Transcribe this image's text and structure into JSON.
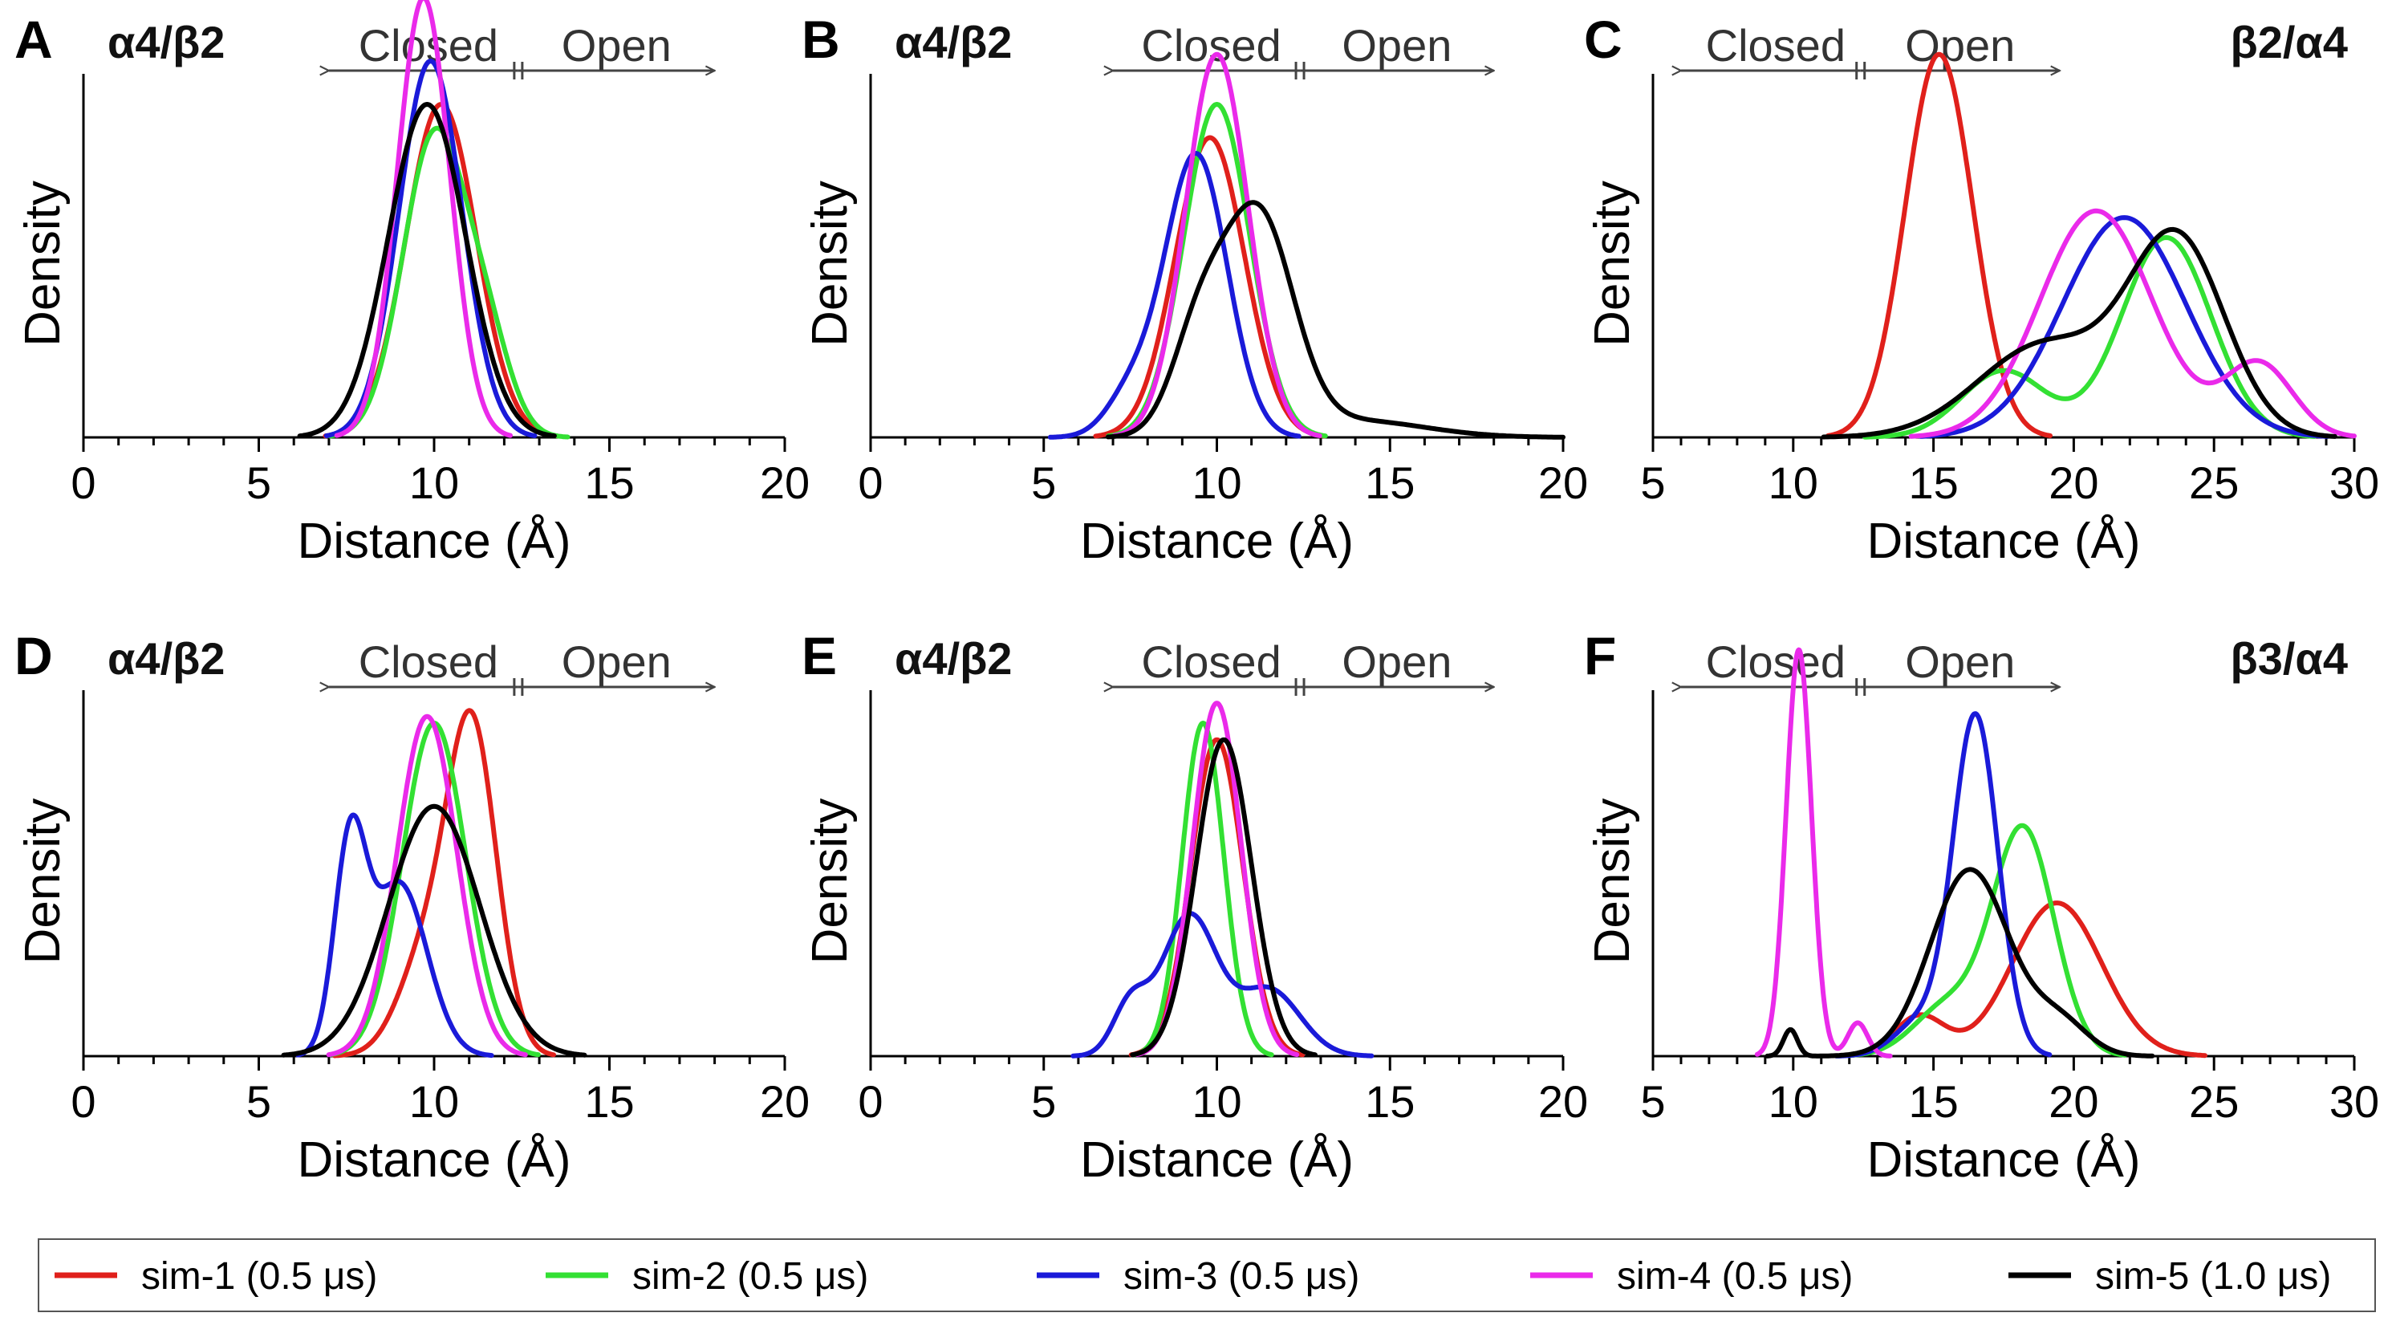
{
  "colors": {
    "sim-1": "#e0201b",
    "sim-2": "#33e033",
    "sim-3": "#1a1ad9",
    "sim-4": "#ea2aea",
    "sim-5": "#000000",
    "axis": "#000000",
    "arrow": "#444444"
  },
  "legend": [
    {
      "key": "sim-1",
      "label": "sim-1 (0.5 μs)"
    },
    {
      "key": "sim-2",
      "label": "sim-2 (0.5 μs)"
    },
    {
      "key": "sim-3",
      "label": "sim-3 (0.5 μs)"
    },
    {
      "key": "sim-4",
      "label": "sim-4 (0.5 μs)"
    },
    {
      "key": "sim-5",
      "label": "sim-5 (1.0 μs)"
    }
  ],
  "chart_data": [
    {
      "panel": "A",
      "type": "line",
      "receptor": "α4/β2",
      "xlabel": "Distance (Å)",
      "ylabel": "Density",
      "xlim": [
        0,
        20
      ],
      "xticks": [
        "0",
        "5",
        "10",
        "15",
        "20"
      ],
      "ylim": [
        0,
        1.0
      ],
      "closed_label": "Closed",
      "open_label": "Open",
      "arrow_range": [
        7,
        18
      ],
      "closed_open_boundary": 12.4,
      "series": [
        {
          "name": "sim-1 (0.5 μs)",
          "key": "sim-1",
          "components": [
            [
              10.2,
              1.0,
              1.0
            ]
          ]
        },
        {
          "name": "sim-2 (0.5 μs)",
          "key": "sim-2",
          "components": [
            [
              10.0,
              0.9,
              0.9
            ],
            [
              11.5,
              0.7,
              0.25
            ]
          ]
        },
        {
          "name": "sim-3 (0.5 μs)",
          "key": "sim-3",
          "components": [
            [
              9.9,
              0.9,
              1.13
            ]
          ]
        },
        {
          "name": "sim-4 (0.5 μs)",
          "key": "sim-4",
          "components": [
            [
              9.7,
              0.75,
              1.32
            ]
          ]
        },
        {
          "name": "sim-5 (1.0 μs)",
          "key": "sim-5",
          "components": [
            [
              9.8,
              1.1,
              1.0
            ]
          ]
        }
      ]
    },
    {
      "panel": "B",
      "type": "line",
      "receptor": "α4/β2",
      "xlabel": "Distance (Å)",
      "ylabel": "Density",
      "xlim": [
        0,
        20
      ],
      "xticks": [
        "0",
        "5",
        "10",
        "15",
        "20"
      ],
      "ylim": [
        0,
        1.0
      ],
      "closed_label": "Closed",
      "open_label": "Open",
      "arrow_range": [
        7,
        18
      ],
      "closed_open_boundary": 12.4,
      "series": [
        {
          "name": "sim-1 (0.5 μs)",
          "key": "sim-1",
          "components": [
            [
              9.8,
              1.0,
              0.9
            ]
          ]
        },
        {
          "name": "sim-2 (0.5 μs)",
          "key": "sim-2",
          "components": [
            [
              10.0,
              0.95,
              1.0
            ]
          ]
        },
        {
          "name": "sim-3 (0.5 μs)",
          "key": "sim-3",
          "components": [
            [
              9.4,
              0.9,
              0.85
            ],
            [
              7.5,
              0.7,
              0.12
            ]
          ]
        },
        {
          "name": "sim-4 (0.5 μs)",
          "key": "sim-4",
          "components": [
            [
              10.0,
              0.9,
              1.15
            ]
          ]
        },
        {
          "name": "sim-5 (1.0 μs)",
          "key": "sim-5",
          "components": [
            [
              11.2,
              1.0,
              0.65
            ],
            [
              9.5,
              0.8,
              0.3
            ],
            [
              14.0,
              2.0,
              0.05
            ]
          ]
        }
      ]
    },
    {
      "panel": "C",
      "type": "line",
      "receptor": "β2/α4",
      "xlabel": "Distance (Å)",
      "ylabel": "Density",
      "xlim": [
        5,
        30
      ],
      "xticks": [
        "5",
        "10",
        "15",
        "20",
        "25",
        "30"
      ],
      "ylim": [
        0,
        1.0
      ],
      "closed_label": "Closed",
      "open_label": "Open",
      "arrow_range": [
        6,
        19.5
      ],
      "closed_open_boundary": 12.4,
      "series": [
        {
          "name": "sim-1 (0.5 μs)",
          "key": "sim-1",
          "components": [
            [
              15.2,
              1.2,
              1.15
            ]
          ]
        },
        {
          "name": "sim-2 (0.5 μs)",
          "key": "sim-2",
          "components": [
            [
              23.3,
              1.6,
              0.6
            ],
            [
              17.5,
              1.5,
              0.2
            ]
          ]
        },
        {
          "name": "sim-3 (0.5 μs)",
          "key": "sim-3",
          "components": [
            [
              21.8,
              2.2,
              0.66
            ]
          ]
        },
        {
          "name": "sim-4 (0.5 μs)",
          "key": "sim-4",
          "components": [
            [
              20.8,
              2.0,
              0.68
            ],
            [
              26.6,
              1.2,
              0.22
            ]
          ]
        },
        {
          "name": "sim-5 (1.0 μs)",
          "key": "sim-5",
          "components": [
            [
              23.7,
              1.7,
              0.58
            ],
            [
              19.0,
              2.4,
              0.28
            ]
          ]
        }
      ]
    },
    {
      "panel": "D",
      "type": "line",
      "receptor": "α4/β2",
      "xlabel": "Distance (Å)",
      "ylabel": "Density",
      "xlim": [
        0,
        20
      ],
      "xticks": [
        "0",
        "5",
        "10",
        "15",
        "20"
      ],
      "ylim": [
        0,
        1.0
      ],
      "closed_label": "Closed",
      "open_label": "Open",
      "arrow_range": [
        7,
        18
      ],
      "closed_open_boundary": 12.4,
      "series": [
        {
          "name": "sim-1 (0.5 μs)",
          "key": "sim-1",
          "components": [
            [
              11.1,
              0.7,
              0.95
            ],
            [
              9.8,
              0.8,
              0.3
            ]
          ]
        },
        {
          "name": "sim-2 (0.5 μs)",
          "key": "sim-2",
          "components": [
            [
              10.0,
              0.9,
              1.0
            ]
          ]
        },
        {
          "name": "sim-3 (0.5 μs)",
          "key": "sim-3",
          "components": [
            [
              7.6,
              0.45,
              0.6
            ],
            [
              9.0,
              0.8,
              0.52
            ]
          ]
        },
        {
          "name": "sim-4 (0.5 μs)",
          "key": "sim-4",
          "components": [
            [
              9.8,
              0.85,
              1.02
            ]
          ]
        },
        {
          "name": "sim-5 (1.0 μs)",
          "key": "sim-5",
          "components": [
            [
              10.0,
              1.3,
              0.75
            ]
          ]
        }
      ]
    },
    {
      "panel": "E",
      "type": "line",
      "receptor": "α4/β2",
      "xlabel": "Distance (Å)",
      "ylabel": "Density",
      "xlim": [
        0,
        20
      ],
      "xticks": [
        "0",
        "5",
        "10",
        "15",
        "20"
      ],
      "ylim": [
        0,
        1.0
      ],
      "closed_label": "Closed",
      "open_label": "Open",
      "arrow_range": [
        7,
        18
      ],
      "closed_open_boundary": 12.4,
      "series": [
        {
          "name": "sim-1 (0.5 μs)",
          "key": "sim-1",
          "components": [
            [
              10.0,
              0.75,
              0.95
            ]
          ]
        },
        {
          "name": "sim-2 (0.5 μs)",
          "key": "sim-2",
          "components": [
            [
              9.6,
              0.6,
              1.0
            ]
          ]
        },
        {
          "name": "sim-3 (0.5 μs)",
          "key": "sim-3",
          "components": [
            [
              9.2,
              0.8,
              0.42
            ],
            [
              7.5,
              0.5,
              0.15
            ],
            [
              11.5,
              0.9,
              0.2
            ]
          ]
        },
        {
          "name": "sim-4 (0.5 μs)",
          "key": "sim-4",
          "components": [
            [
              10.0,
              0.7,
              1.06
            ]
          ]
        },
        {
          "name": "sim-5 (1.0 μs)",
          "key": "sim-5",
          "components": [
            [
              10.2,
              0.8,
              0.95
            ]
          ]
        }
      ]
    },
    {
      "panel": "F",
      "type": "line",
      "receptor": "β3/α4",
      "xlabel": "Distance (Å)",
      "ylabel": "Density",
      "xlim": [
        5,
        30
      ],
      "xticks": [
        "5",
        "10",
        "15",
        "20",
        "25",
        "30"
      ],
      "ylim": [
        0,
        1.0
      ],
      "closed_label": "Closed",
      "open_label": "Open",
      "arrow_range": [
        6,
        19.5
      ],
      "closed_open_boundary": 12.4,
      "series": [
        {
          "name": "sim-1 (0.5 μs)",
          "key": "sim-1",
          "components": [
            [
              19.4,
              1.6,
              0.46
            ],
            [
              14.5,
              0.9,
              0.12
            ]
          ]
        },
        {
          "name": "sim-2 (0.5 μs)",
          "key": "sim-2",
          "components": [
            [
              18.2,
              1.1,
              0.68
            ],
            [
              15.5,
              1.2,
              0.15
            ]
          ]
        },
        {
          "name": "sim-3 (0.5 μs)",
          "key": "sim-3",
          "components": [
            [
              16.5,
              0.8,
              1.02
            ],
            [
              14.5,
              0.9,
              0.1
            ]
          ]
        },
        {
          "name": "sim-4 (0.5 μs)",
          "key": "sim-4",
          "components": [
            [
              10.2,
              0.45,
              1.22
            ],
            [
              12.3,
              0.35,
              0.1
            ]
          ]
        },
        {
          "name": "sim-5 (1.0 μs)",
          "key": "sim-5",
          "components": [
            [
              16.3,
              1.4,
              0.56
            ],
            [
              9.9,
              0.25,
              0.08
            ],
            [
              19.5,
              1.0,
              0.1
            ]
          ]
        }
      ]
    }
  ]
}
